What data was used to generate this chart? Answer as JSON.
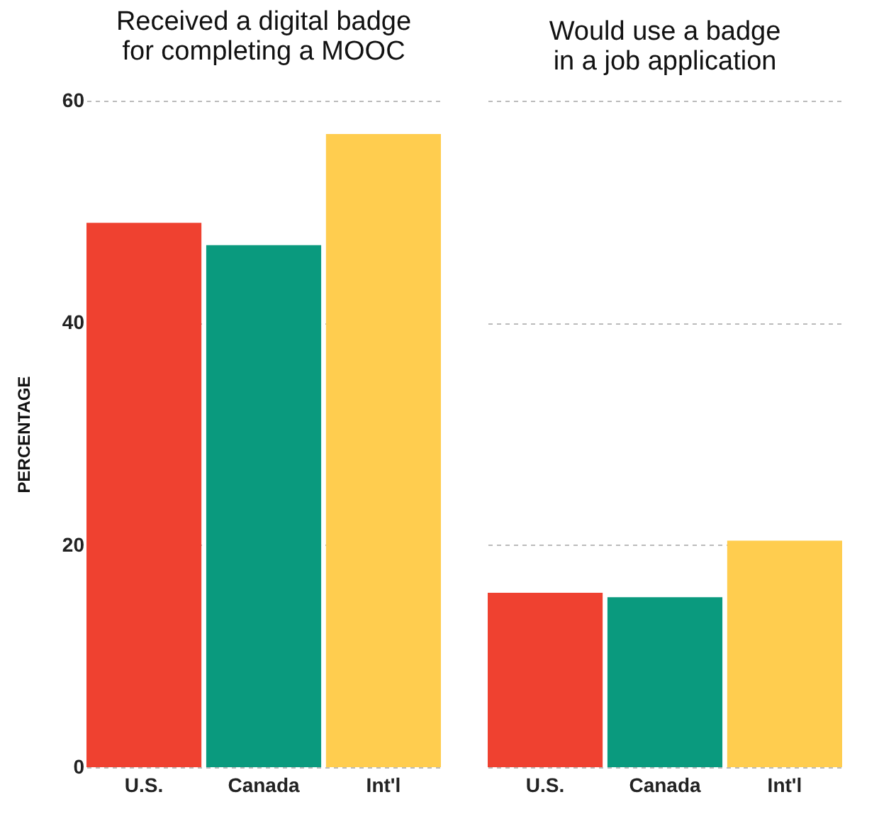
{
  "chart_data": [
    {
      "type": "bar",
      "title": "Received a digital badge\nfor completing a MOOC",
      "ylabel": "PERCENTAGE",
      "categories": [
        "U.S.",
        "Canada",
        "Int'l"
      ],
      "values": [
        49,
        47,
        57
      ],
      "colors": [
        "#ef4130",
        "#0a9a7e",
        "#ffcd4f"
      ],
      "ylim": [
        0,
        60
      ],
      "yticks": [
        0,
        20,
        40,
        60
      ],
      "grid": "y"
    },
    {
      "type": "bar",
      "title": "Would use a badge\nin a job application",
      "categories": [
        "U.S.",
        "Canada",
        "Int'l"
      ],
      "values": [
        15.7,
        15.3,
        20.4
      ],
      "colors": [
        "#ef4130",
        "#0a9a7e",
        "#ffcd4f"
      ],
      "ylim": [
        0,
        60
      ],
      "yticks": [
        0,
        20,
        40,
        60
      ],
      "grid": "y",
      "tick_labels": "x"
    }
  ]
}
